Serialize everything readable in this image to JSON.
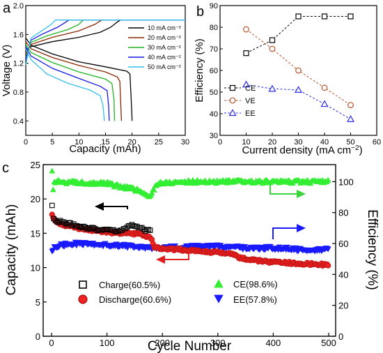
{
  "panel_a": {
    "label": "a",
    "xlabel": "Capacity (mAh)",
    "ylabel": "Voltage (V)",
    "xticks": [
      "0",
      "5",
      "10",
      "15",
      "20",
      "25",
      "30"
    ],
    "yticks": [
      "0.4",
      "0.8",
      "1.2",
      "1.6",
      "2.0"
    ],
    "legend": [
      "10 mA cm⁻²",
      "20 mA cm⁻²",
      "30 mA cm⁻²",
      "40 mA cm⁻²",
      "50 mA cm⁻²"
    ]
  },
  "panel_b": {
    "label": "b",
    "xlabel": "Current density (mA cm⁻²)",
    "ylabel": "Efficiency (%)",
    "xticks": [
      "0",
      "10",
      "20",
      "30",
      "40",
      "50",
      "60"
    ],
    "yticks": [
      "30",
      "40",
      "50",
      "60",
      "70",
      "80",
      "90"
    ],
    "legend": [
      "CE",
      "VE",
      "EE"
    ]
  },
  "panel_c": {
    "label": "c",
    "xlabel": "Cycle Number",
    "ylabel_left": "Capacity (mAh)",
    "ylabel_right": "Efficiency (%)",
    "xticks": [
      "0",
      "100",
      "200",
      "300",
      "400",
      "500"
    ],
    "yticks_left": [
      "0",
      "5",
      "10",
      "15",
      "20",
      "25"
    ],
    "yticks_right": [
      "0",
      "20",
      "40",
      "60",
      "80",
      "100"
    ],
    "legend": [
      "Charge(60.5%)",
      "Discharge(60.6%)",
      "CE(98.6%)",
      "EE(57.8%)"
    ]
  },
  "colors": {
    "black": "#000000",
    "brown": "#8b2500",
    "green": "#1fb31f",
    "blue": "#1515e6",
    "teal": "#1aa9a0",
    "skyblue": "#33bde8",
    "cyan": "#2ee0ee",
    "ce_green": "#33ee33",
    "ee_blue": "#1a1aff",
    "discharge_red": "#ee2222"
  },
  "chart_data": [
    {
      "type": "line",
      "panel": "a",
      "xlabel": "Capacity (mAh)",
      "ylabel": "Voltage (V)",
      "xlim": [
        0,
        30
      ],
      "ylim": [
        0.2,
        2.0
      ],
      "series": [
        {
          "name": "10 mA cm⁻²",
          "color": "#000000",
          "charge": [
            [
              0,
              1.38
            ],
            [
              1,
              1.43
            ],
            [
              5,
              1.5
            ],
            [
              10,
              1.56
            ],
            [
              14,
              1.63
            ],
            [
              16,
              1.7
            ],
            [
              17,
              1.76
            ],
            [
              17.8,
              1.8
            ],
            [
              30,
              1.8
            ]
          ],
          "discharge": [
            [
              0,
              1.55
            ],
            [
              1,
              1.45
            ],
            [
              5,
              1.33
            ],
            [
              10,
              1.22
            ],
            [
              15,
              1.15
            ],
            [
              19,
              1.09
            ],
            [
              19.6,
              1.05
            ],
            [
              19.9,
              0.6
            ],
            [
              20,
              0.4
            ]
          ]
        },
        {
          "name": "20 mA cm⁻²",
          "color": "#8b2500",
          "charge": [
            [
              0,
              1.33
            ],
            [
              1,
              1.46
            ],
            [
              5,
              1.56
            ],
            [
              10,
              1.65
            ],
            [
              13,
              1.74
            ],
            [
              14.3,
              1.8
            ],
            [
              30,
              1.8
            ]
          ],
          "discharge": [
            [
              0,
              1.5
            ],
            [
              1,
              1.4
            ],
            [
              5,
              1.28
            ],
            [
              10,
              1.17
            ],
            [
              15,
              1.08
            ],
            [
              17.2,
              1.01
            ],
            [
              17.7,
              0.95
            ],
            [
              18,
              0.4
            ]
          ]
        },
        {
          "name": "30 mA cm⁻²",
          "color": "#1fb31f",
          "charge": [
            [
              0,
              1.28
            ],
            [
              1,
              1.49
            ],
            [
              4,
              1.58
            ],
            [
              8,
              1.67
            ],
            [
              10,
              1.74
            ],
            [
              10.8,
              1.8
            ],
            [
              30,
              1.8
            ]
          ],
          "discharge": [
            [
              0,
              1.46
            ],
            [
              1,
              1.35
            ],
            [
              5,
              1.21
            ],
            [
              10,
              1.08
            ],
            [
              15,
              0.98
            ],
            [
              16.2,
              0.92
            ],
            [
              16.6,
              0.7
            ],
            [
              16.7,
              0.4
            ]
          ]
        },
        {
          "name": "40 mA cm⁻²",
          "color": "#1515e6",
          "charge": [
            [
              0,
              1.25
            ],
            [
              1,
              1.52
            ],
            [
              3,
              1.6
            ],
            [
              6,
              1.7
            ],
            [
              7.5,
              1.77
            ],
            [
              8.1,
              1.8
            ],
            [
              30,
              1.8
            ]
          ],
          "discharge": [
            [
              0,
              1.43
            ],
            [
              1,
              1.3
            ],
            [
              5,
              1.13
            ],
            [
              10,
              0.99
            ],
            [
              14,
              0.88
            ],
            [
              15.3,
              0.82
            ],
            [
              15.6,
              0.6
            ],
            [
              15.7,
              0.4
            ]
          ]
        },
        {
          "name": "50 mA cm⁻²",
          "color": "#33bde8",
          "charge": [
            [
              0,
              1.18
            ],
            [
              1,
              1.55
            ],
            [
              3,
              1.65
            ],
            [
              4.8,
              1.74
            ],
            [
              5.6,
              1.8
            ],
            [
              30,
              1.8
            ]
          ],
          "discharge": [
            [
              0,
              1.4
            ],
            [
              1,
              1.25
            ],
            [
              4,
              1.05
            ],
            [
              8,
              0.92
            ],
            [
              12,
              0.83
            ],
            [
              14,
              0.75
            ],
            [
              14.5,
              0.62
            ],
            [
              14.8,
              0.4
            ]
          ]
        }
      ]
    },
    {
      "type": "line",
      "panel": "b",
      "xlabel": "Current density (mA cm⁻²)",
      "ylabel": "Efficiency (%)",
      "xlim": [
        0,
        60
      ],
      "ylim": [
        30,
        90
      ],
      "x": [
        10,
        20,
        30,
        40,
        50
      ],
      "series": [
        {
          "name": "CE",
          "color": "#000000",
          "marker": "square",
          "values": [
            68,
            74,
            85,
            85,
            85
          ]
        },
        {
          "name": "VE",
          "color": "#b5532b",
          "marker": "circle",
          "values": [
            79,
            70,
            60,
            52,
            44
          ]
        },
        {
          "name": "EE",
          "color": "#2b2be8",
          "marker": "triangle-up",
          "values": [
            53.5,
            51.5,
            51,
            44.5,
            37.5
          ]
        }
      ]
    },
    {
      "type": "scatter",
      "panel": "c",
      "xlabel": "Cycle Number",
      "ylabel": "Capacity (mAh)",
      "ylabel_right": "Efficiency (%)",
      "xlim": [
        0,
        500
      ],
      "ylim": [
        0,
        25
      ],
      "ylim_right": [
        0,
        111
      ],
      "series": [
        {
          "name": "Charge(60.5%)",
          "axis": "left",
          "marker": "open-square",
          "color": "#000000",
          "points": [
            [
              1,
              19.0
            ],
            [
              2,
              17.3
            ],
            [
              3,
              17.0
            ],
            [
              10,
              16.8
            ],
            [
              40,
              16.2
            ],
            [
              80,
              15.6
            ],
            [
              120,
              15.3
            ],
            [
              140,
              16.0
            ],
            [
              150,
              16.2
            ],
            [
              160,
              15.8
            ],
            [
              170,
              15.4
            ],
            [
              175,
              15.6
            ],
            [
              180,
              15.5
            ]
          ]
        },
        {
          "name": "Discharge(60.6%)",
          "axis": "left",
          "marker": "circle",
          "color": "#ee2222",
          "points": [
            [
              1,
              17.8
            ],
            [
              2,
              17.5
            ],
            [
              5,
              17.0
            ],
            [
              10,
              16.6
            ],
            [
              20,
              16.2
            ],
            [
              40,
              15.9
            ],
            [
              60,
              15.6
            ],
            [
              80,
              15.4
            ],
            [
              100,
              15.2
            ],
            [
              120,
              15.0
            ],
            [
              140,
              15.0
            ],
            [
              160,
              14.9
            ],
            [
              180,
              14.2
            ],
            [
              185,
              13.0
            ],
            [
              200,
              12.8
            ],
            [
              250,
              12.5
            ],
            [
              300,
              12.2
            ],
            [
              330,
              11.9
            ],
            [
              340,
              11.4
            ],
            [
              360,
              11.1
            ],
            [
              400,
              10.8
            ],
            [
              450,
              10.6
            ],
            [
              500,
              10.4
            ]
          ]
        },
        {
          "name": "CE(98.6%)",
          "axis": "right",
          "marker": "triangle-up",
          "color": "#33ee33",
          "points": [
            [
              1,
              106
            ],
            [
              2,
              92
            ],
            [
              5,
              100
            ],
            [
              50,
              99.5
            ],
            [
              100,
              99
            ],
            [
              120,
              97
            ],
            [
              140,
              96
            ],
            [
              160,
              94
            ],
            [
              175,
              90
            ],
            [
              180,
              92
            ],
            [
              190,
              99
            ],
            [
              250,
              100
            ],
            [
              300,
              100
            ],
            [
              400,
              100
            ],
            [
              500,
              100
            ]
          ]
        },
        {
          "name": "EE(57.8%)",
          "axis": "right",
          "marker": "triangle-down",
          "color": "#1a1aff",
          "points": [
            [
              1,
              55
            ],
            [
              5,
              58
            ],
            [
              20,
              59
            ],
            [
              50,
              60
            ],
            [
              100,
              59
            ],
            [
              150,
              58
            ],
            [
              180,
              57
            ],
            [
              200,
              57
            ],
            [
              250,
              58
            ],
            [
              300,
              58
            ],
            [
              350,
              57
            ],
            [
              400,
              57
            ],
            [
              450,
              56
            ],
            [
              500,
              56
            ]
          ]
        }
      ]
    }
  ]
}
